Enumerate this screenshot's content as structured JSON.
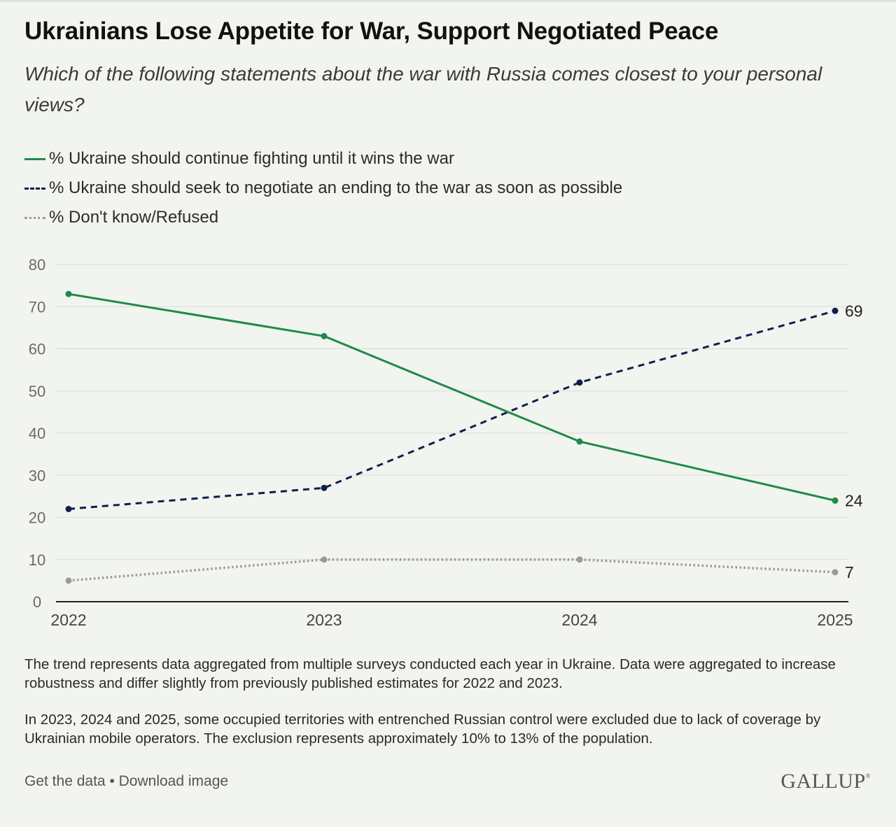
{
  "header": {
    "title": "Ukrainians Lose Appetite for War, Support Negotiated Peace",
    "subtitle": "Which of the following statements about the war with Russia comes closest to your personal views?"
  },
  "legend": [
    {
      "label": "% Ukraine should continue fighting until it wins the war",
      "style": "solid",
      "color": "#1e8a4c"
    },
    {
      "label": "% Ukraine should seek to negotiate an ending to the war as soon as possible",
      "style": "dashed",
      "color": "#0f1f4d"
    },
    {
      "label": "% Don't know/Refused",
      "style": "dotted",
      "color": "#9a9a9a"
    }
  ],
  "chart_data": {
    "type": "line",
    "x": [
      "2022",
      "2023",
      "2024",
      "2025"
    ],
    "ylim": [
      0,
      80
    ],
    "yticks": [
      "0",
      "10",
      "20",
      "30",
      "40",
      "50",
      "60",
      "70",
      "80"
    ],
    "grid": true,
    "series": [
      {
        "name": "% Ukraine should continue fighting until it wins the war",
        "values": [
          73,
          63,
          38,
          24
        ],
        "color": "#1e8a4c",
        "dash": "solid",
        "end_label": "24"
      },
      {
        "name": "% Ukraine should seek to negotiate an ending to the war as soon as possible",
        "values": [
          22,
          27,
          52,
          69
        ],
        "color": "#0f1f4d",
        "dash": "dashed",
        "end_label": "69"
      },
      {
        "name": "% Don't know/Refused",
        "values": [
          5,
          10,
          10,
          7
        ],
        "color": "#9a9a9a",
        "dash": "dotted",
        "end_label": "7"
      }
    ]
  },
  "notes": {
    "note1": "The trend represents data aggregated from multiple surveys conducted each year in Ukraine. Data were aggregated to increase robustness and differ slightly from previously published estimates for 2022 and 2023.",
    "note2": "In 2023, 2024 and 2025, some occupied territories with entrenched Russian control were excluded due to lack of coverage by Ukrainian mobile operators. The exclusion represents approximately 10% to 13% of the population."
  },
  "footer": {
    "get_data": "Get the data",
    "separator": "•",
    "download": "Download image",
    "brand": "GALLUP",
    "brand_mark": "®"
  }
}
